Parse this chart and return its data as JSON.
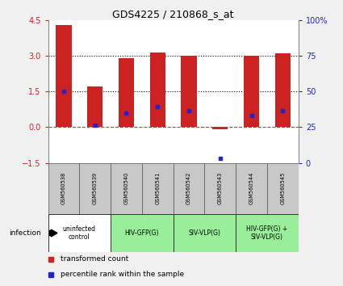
{
  "title": "GDS4225 / 210868_s_at",
  "samples": [
    "GSM560538",
    "GSM560539",
    "GSM560540",
    "GSM560541",
    "GSM560542",
    "GSM560543",
    "GSM560544",
    "GSM560545"
  ],
  "red_values": [
    4.3,
    1.7,
    2.9,
    3.15,
    3.0,
    -0.1,
    3.0,
    3.1
  ],
  "blue_values": [
    1.5,
    0.07,
    0.6,
    0.85,
    0.7,
    -1.3,
    0.5,
    0.7
  ],
  "ylim": [
    -1.5,
    4.5
  ],
  "yticks_left": [
    -1.5,
    0,
    1.5,
    3.0,
    4.5
  ],
  "yticks_right": [
    0,
    25,
    50,
    75,
    100
  ],
  "hlines": [
    0.0,
    1.5,
    3.0
  ],
  "hline_styles": [
    "--",
    ":",
    ":"
  ],
  "hline_colors": [
    "#cc3333",
    "#000000",
    "#000000"
  ],
  "groups": [
    {
      "label": "uninfected\ncontrol",
      "start": 0,
      "end": 2,
      "color": "#ffffff"
    },
    {
      "label": "HIV-GFP(G)",
      "start": 2,
      "end": 4,
      "color": "#99ee99"
    },
    {
      "label": "SIV-VLP(G)",
      "start": 4,
      "end": 6,
      "color": "#99ee99"
    },
    {
      "label": "HIV-GFP(G) +\nSIV-VLP(G)",
      "start": 6,
      "end": 8,
      "color": "#99ee99"
    }
  ],
  "infection_label": "infection",
  "legend_red": "transformed count",
  "legend_blue": "percentile rank within the sample",
  "bar_color": "#cc2222",
  "dot_color": "#2222cc",
  "bar_width": 0.5,
  "bg_color": "#f0f0f0",
  "plot_bg": "#ffffff",
  "axis_color_left": "#cc2222",
  "axis_color_right": "#2222cc",
  "sample_box_color": "#c8c8c8"
}
